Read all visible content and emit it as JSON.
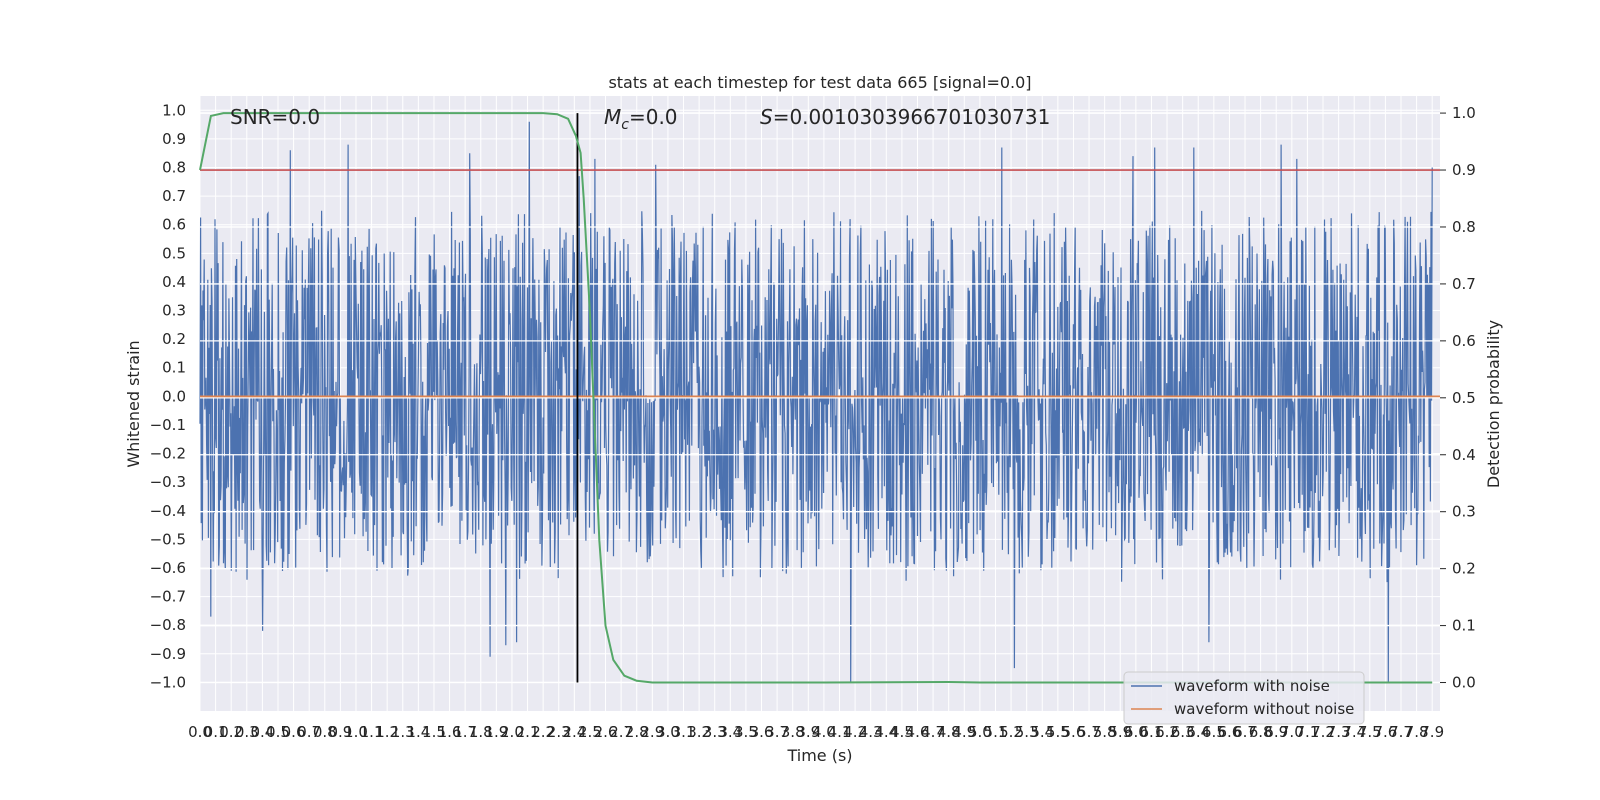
{
  "chart_data": {
    "type": "line",
    "title": "stats at each timestep for test data 665 [signal=0.0]",
    "xlabel": "Time (s)",
    "ylabel": "Whitened strain",
    "y2label": "Detection probability",
    "xlim": [
      0.0,
      7.95
    ],
    "ylim": [
      -1.1,
      1.05
    ],
    "y2lim": [
      -0.05,
      1.03
    ],
    "x_ticks": [
      "0.0",
      "0.1",
      "0.2",
      "0.3",
      "0.4",
      "0.5",
      "0.6",
      "0.7",
      "0.8",
      "0.9",
      "1.0",
      "1.1",
      "1.2",
      "1.3",
      "1.4",
      "1.5",
      "1.6",
      "1.7",
      "1.8",
      "1.9",
      "2.0",
      "2.1",
      "2.2",
      "2.3",
      "2.4",
      "2.5",
      "2.6",
      "2.7",
      "2.8",
      "2.9",
      "3.0",
      "3.1",
      "3.2",
      "3.3",
      "3.4",
      "3.5",
      "3.6",
      "3.7",
      "3.8",
      "3.9",
      "4.0",
      "4.1",
      "4.2",
      "4.3",
      "4.4",
      "4.5",
      "4.6",
      "4.7",
      "4.8",
      "4.9",
      "5.0",
      "5.1",
      "5.2",
      "5.3",
      "5.4",
      "5.5",
      "5.6",
      "5.7",
      "5.8",
      "5.9",
      "6.0",
      "6.1",
      "6.2",
      "6.3",
      "6.4",
      "6.5",
      "6.6",
      "6.7",
      "6.8",
      "6.9",
      "7.0",
      "7.1",
      "7.2",
      "7.3",
      "7.4",
      "7.5",
      "7.6",
      "7.7",
      "7.8",
      "7.9"
    ],
    "y_ticks": [
      "1.0",
      "0.9",
      "0.8",
      "0.7",
      "0.6",
      "0.5",
      "0.4",
      "0.3",
      "0.2",
      "0.1",
      "0.0",
      "-0.1",
      "-0.2",
      "-0.3",
      "-0.4",
      "-0.5",
      "-0.6",
      "-0.7",
      "-0.8",
      "-0.9",
      "-1.0"
    ],
    "y2_ticks": [
      "1.0",
      "0.9",
      "0.8",
      "0.7",
      "0.6",
      "0.5",
      "0.4",
      "0.3",
      "0.2",
      "0.1",
      "0.0"
    ],
    "grid": true,
    "legend_position": "lower-right",
    "annotations": {
      "snr": "SNR=0.0",
      "mc_symbol": "M",
      "mc_sub": "c",
      "mc_value": "=0.0",
      "s_symbol": "S",
      "s_value": "=0.0010303966701030731"
    },
    "noisy_waveform": {
      "name": "waveform with noise",
      "color": "#4c72b0",
      "sample_count": 2048,
      "typical_range": [
        -0.6,
        0.65
      ],
      "peaks": [
        {
          "x": 2.11,
          "y": 0.96
        },
        {
          "x": 0.58,
          "y": 0.86
        },
        {
          "x": 0.95,
          "y": 0.88
        },
        {
          "x": 1.73,
          "y": 0.85
        },
        {
          "x": 1.86,
          "y": 0.84
        },
        {
          "x": 2.43,
          "y": 0.77
        },
        {
          "x": 2.53,
          "y": 0.83
        },
        {
          "x": 2.92,
          "y": 0.81
        },
        {
          "x": 5.14,
          "y": 0.87
        },
        {
          "x": 5.98,
          "y": 0.84
        },
        {
          "x": 6.12,
          "y": 0.87
        },
        {
          "x": 6.37,
          "y": 0.87
        },
        {
          "x": 6.93,
          "y": 0.88
        },
        {
          "x": 7.03,
          "y": 0.83
        },
        {
          "x": 7.92,
          "y": 0.8
        }
      ],
      "troughs": [
        {
          "x": 0.07,
          "y": -0.77
        },
        {
          "x": 0.4,
          "y": -0.82
        },
        {
          "x": 1.86,
          "y": -0.91
        },
        {
          "x": 1.96,
          "y": -0.87
        },
        {
          "x": 2.03,
          "y": -0.86
        },
        {
          "x": 4.17,
          "y": -1.0
        },
        {
          "x": 5.22,
          "y": -0.95
        },
        {
          "x": 6.47,
          "y": -0.86
        },
        {
          "x": 7.62,
          "y": -1.0
        }
      ]
    },
    "clean_waveform": {
      "name": "waveform without noise",
      "color": "#dd8452",
      "value": 0.0
    },
    "detection_probability": {
      "color": "#55a868",
      "points": [
        [
          0.0,
          0.9
        ],
        [
          0.07,
          0.995
        ],
        [
          0.15,
          1.0
        ],
        [
          1.0,
          1.0
        ],
        [
          2.0,
          1.0
        ],
        [
          2.2,
          1.0
        ],
        [
          2.29,
          0.998
        ],
        [
          2.36,
          0.99
        ],
        [
          2.41,
          0.96
        ],
        [
          2.44,
          0.93
        ],
        [
          2.46,
          0.85
        ],
        [
          2.5,
          0.65
        ],
        [
          2.53,
          0.45
        ],
        [
          2.56,
          0.25
        ],
        [
          2.6,
          0.1
        ],
        [
          2.65,
          0.04
        ],
        [
          2.72,
          0.012
        ],
        [
          2.8,
          0.003
        ],
        [
          2.9,
          0.0
        ],
        [
          4.0,
          0.0
        ],
        [
          4.8,
          0.001
        ],
        [
          5.0,
          0.0
        ],
        [
          7.9,
          0.0
        ]
      ]
    },
    "threshold": {
      "value": 0.9,
      "color": "#c44e52"
    },
    "vertical_marker": {
      "x": 2.42,
      "color": "#000000"
    }
  }
}
